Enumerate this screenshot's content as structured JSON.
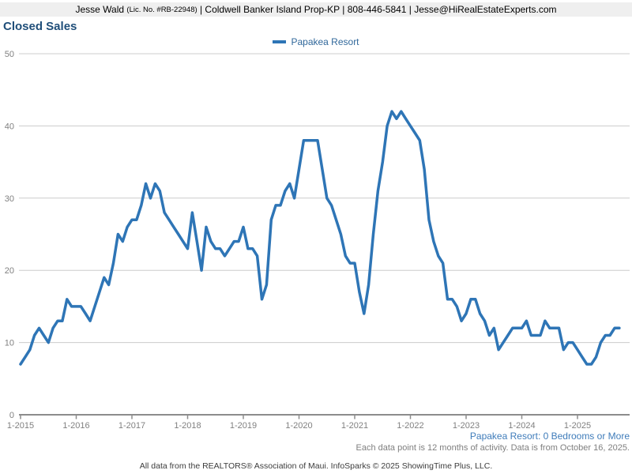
{
  "header": {
    "name": "Jesse Wald ",
    "license": "(Lic. No. #RB-22948)",
    "contact": " | Coldwell Banker Island Prop-KP | 808-446-5841 | Jesse@HiRealEstateExperts.com"
  },
  "title": "Closed Sales",
  "legend": {
    "label": "Papakea Resort"
  },
  "chart_data": {
    "type": "line",
    "title": "Closed Sales",
    "x_start": "1-2015",
    "x_end": "10-2025",
    "x_interval": "monthly",
    "x_tick_labels": [
      "1-2015",
      "1-2016",
      "1-2017",
      "1-2018",
      "1-2019",
      "1-2020",
      "1-2021",
      "1-2022",
      "1-2023",
      "1-2024",
      "1-2025"
    ],
    "x_tick_every_months": 12,
    "ylim": [
      0,
      50
    ],
    "yticks": [
      0,
      10,
      20,
      30,
      40,
      50
    ],
    "grid": "horizontal",
    "legend_position": "top-center",
    "series": [
      {
        "name": "Papakea Resort",
        "color": "#2e75b6",
        "values": [
          7,
          8,
          9,
          11,
          12,
          11,
          10,
          12,
          13,
          13,
          16,
          15,
          15,
          15,
          14,
          13,
          15,
          17,
          19,
          18,
          21,
          25,
          24,
          26,
          27,
          27,
          29,
          32,
          30,
          32,
          31,
          28,
          27,
          26,
          25,
          24,
          23,
          28,
          24,
          20,
          26,
          24,
          23,
          23,
          22,
          23,
          24,
          24,
          26,
          23,
          23,
          22,
          16,
          18,
          27,
          29,
          29,
          31,
          32,
          30,
          34,
          38,
          38,
          38,
          38,
          34,
          30,
          29,
          27,
          25,
          22,
          21,
          21,
          17,
          14,
          18,
          25,
          31,
          35,
          40,
          42,
          41,
          42,
          41,
          40,
          39,
          38,
          34,
          27,
          24,
          22,
          21,
          16,
          16,
          15,
          13,
          14,
          16,
          16,
          14,
          13,
          11,
          12,
          9,
          10,
          11,
          12,
          12,
          12,
          13,
          11,
          11,
          11,
          13,
          12,
          12,
          12,
          9,
          10,
          10,
          9,
          8,
          7,
          7,
          8,
          10,
          11,
          11,
          12,
          12
        ]
      }
    ]
  },
  "notes": {
    "filter": "Papakea Resort: 0 Bedrooms or More",
    "data_note": "Each data point is 12 months of activity. Data is from October 16, 2025.",
    "attribution": "All data from the REALTORS® Association of Maui. InfoSparks © 2025 ShowingTime Plus, LLC."
  },
  "colors": {
    "line": "#2e75b6",
    "title_text": "#1f4e79",
    "legend_text": "#31689b",
    "note_blue": "#3f7cba",
    "axis_text": "#808080",
    "gridline": "#cccccc",
    "axis_line": "#8c8c8c",
    "header_bg": "#efefef"
  }
}
